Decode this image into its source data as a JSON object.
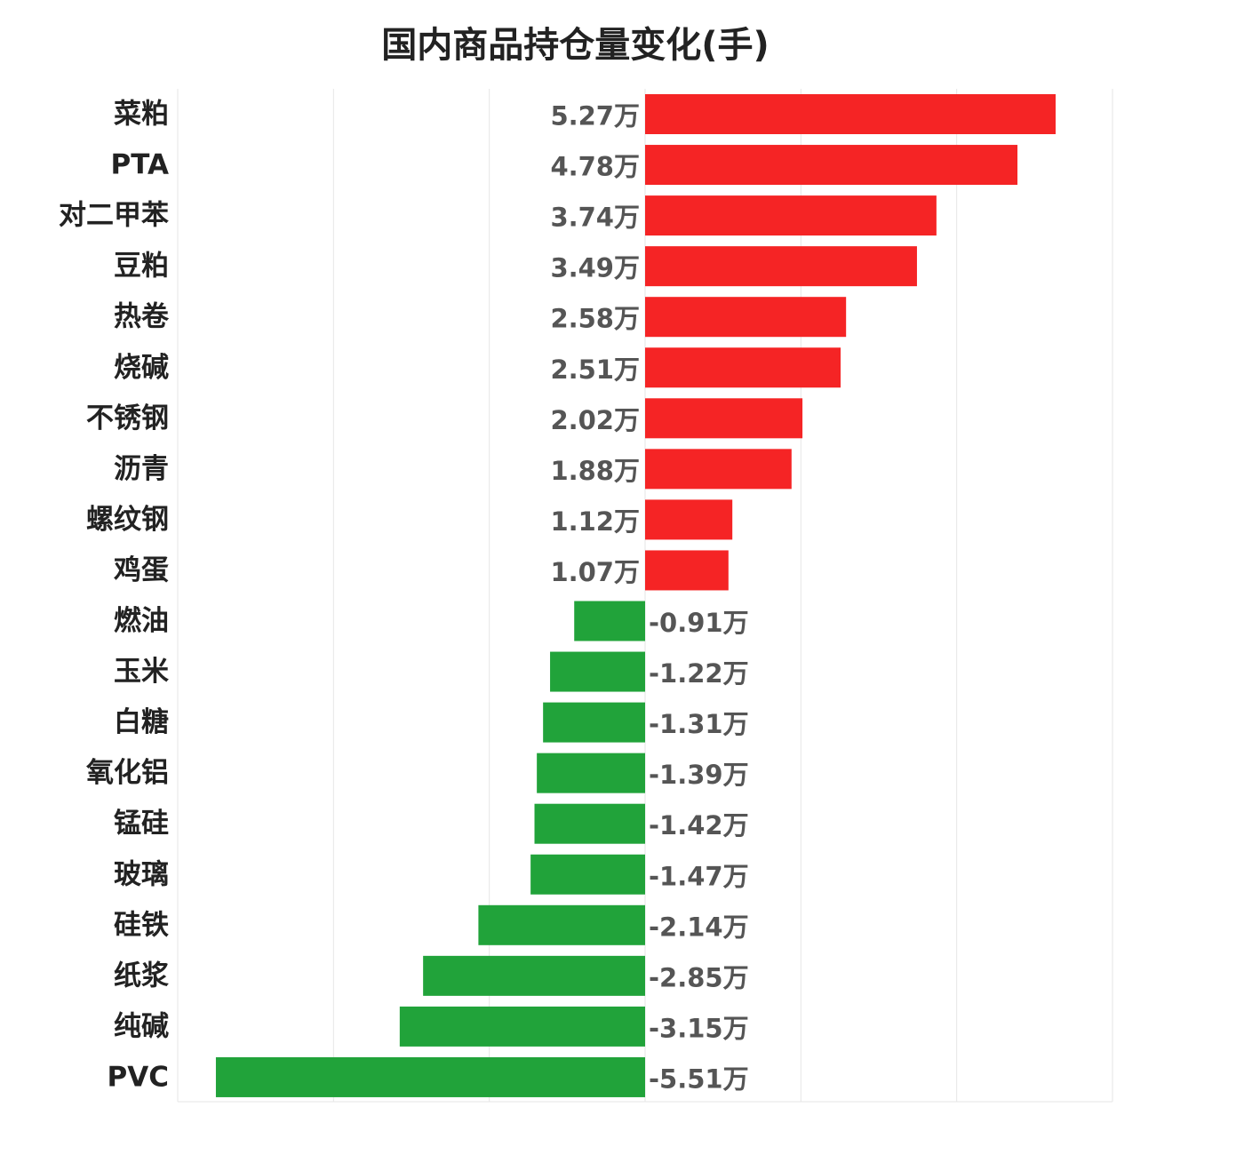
{
  "chart_data": {
    "type": "bar",
    "orientation": "horizontal",
    "title": "国内商品持仓量变化(手)",
    "unit_suffix": "万",
    "categories": [
      "菜粕",
      "PTA",
      "对二甲苯",
      "豆粕",
      "热卷",
      "烧碱",
      "不锈钢",
      "沥青",
      "螺纹钢",
      "鸡蛋",
      "燃油",
      "玉米",
      "白糖",
      "氧化铝",
      "锰硅",
      "玻璃",
      "硅铁",
      "纸浆",
      "纯碱",
      "PVC"
    ],
    "values": [
      5.27,
      4.78,
      3.74,
      3.49,
      2.58,
      2.51,
      2.02,
      1.88,
      1.12,
      1.07,
      -0.91,
      -1.22,
      -1.31,
      -1.39,
      -1.42,
      -1.47,
      -2.14,
      -2.85,
      -3.15,
      -5.51
    ],
    "value_labels": [
      "5.27万",
      "4.78万",
      "3.74万",
      "3.49万",
      "2.58万",
      "2.51万",
      "2.02万",
      "1.88万",
      "1.12万",
      "1.07万",
      "-0.91万",
      "-1.22万",
      "-1.31万",
      "-1.39万",
      "-1.42万",
      "-1.47万",
      "-2.14万",
      "-2.85万",
      "-3.15万",
      "-5.51万"
    ],
    "xlim": [
      -6,
      6
    ],
    "grid": true,
    "colors": {
      "positive": "#f52425",
      "negative": "#21a33a",
      "grid": "#e6e6e6"
    }
  }
}
